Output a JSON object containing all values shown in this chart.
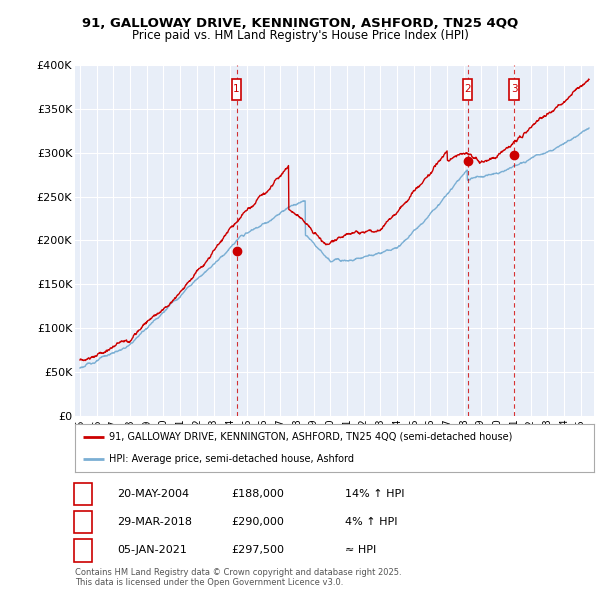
{
  "title_line1": "91, GALLOWAY DRIVE, KENNINGTON, ASHFORD, TN25 4QQ",
  "title_line2": "Price paid vs. HM Land Registry's House Price Index (HPI)",
  "ylim": [
    0,
    400000
  ],
  "yticks": [
    0,
    50000,
    100000,
    150000,
    200000,
    250000,
    300000,
    350000,
    400000
  ],
  "ytick_labels": [
    "£0",
    "£50K",
    "£100K",
    "£150K",
    "£200K",
    "£250K",
    "£300K",
    "£350K",
    "£400K"
  ],
  "xlim_start": 1994.7,
  "xlim_end": 2025.8,
  "transactions": [
    {
      "date_num": 2004.38,
      "price": 188000,
      "label": "1"
    },
    {
      "date_num": 2018.24,
      "price": 290000,
      "label": "2"
    },
    {
      "date_num": 2021.01,
      "price": 297500,
      "label": "3"
    }
  ],
  "transaction_labels": [
    {
      "label": "1",
      "date": "20-MAY-2004",
      "price": "£188,000",
      "hpi": "14% ↑ HPI"
    },
    {
      "label": "2",
      "date": "29-MAR-2018",
      "price": "£290,000",
      "hpi": "4% ↑ HPI"
    },
    {
      "label": "3",
      "date": "05-JAN-2021",
      "price": "£297,500",
      "hpi": "≈ HPI"
    }
  ],
  "legend_line1": "91, GALLOWAY DRIVE, KENNINGTON, ASHFORD, TN25 4QQ (semi-detached house)",
  "legend_line2": "HPI: Average price, semi-detached house, Ashford",
  "footer": "Contains HM Land Registry data © Crown copyright and database right 2025.\nThis data is licensed under the Open Government Licence v3.0.",
  "red_color": "#cc0000",
  "blue_color": "#7bafd4",
  "bg_color": "#e8eef8",
  "grid_color": "#ffffff",
  "dashed_color": "#cc0000"
}
